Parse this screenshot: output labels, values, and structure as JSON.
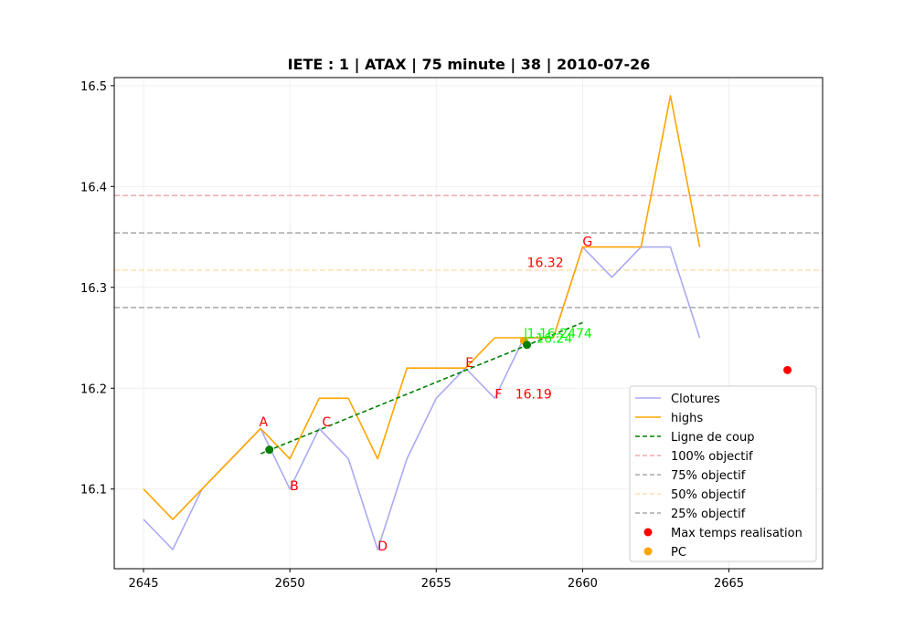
{
  "chart_data": {
    "type": "line",
    "title": "IETE : 1 | ATAX | 75 minute | 38 | 2010-07-26",
    "xlabel": "",
    "ylabel": "",
    "xlim": [
      2644.0,
      2668.2
    ],
    "ylim": [
      16.021,
      16.508
    ],
    "xticks": [
      2645,
      2650,
      2655,
      2660,
      2665
    ],
    "yticks": [
      16.1,
      16.2,
      16.3,
      16.4,
      16.5
    ],
    "ytick_labels": [
      "16.1",
      "16.2",
      "16.3",
      "16.4",
      "16.5"
    ],
    "grid": true,
    "legend_position": "lower-right",
    "series": [
      {
        "name": "Clotures",
        "kind": "line",
        "color": "#aaaaf4",
        "x": [
          2645,
          2646,
          2647,
          2648,
          2649,
          2650,
          2651,
          2652,
          2653,
          2654,
          2655,
          2656,
          2657,
          2658,
          2659,
          2660,
          2661,
          2662,
          2663,
          2664
        ],
        "y": [
          16.07,
          16.04,
          16.1,
          16.13,
          16.16,
          16.1,
          16.16,
          16.13,
          16.04,
          16.13,
          16.19,
          16.22,
          16.19,
          16.25,
          16.25,
          16.34,
          16.31,
          16.34,
          16.34,
          16.25
        ]
      },
      {
        "name": "highs",
        "kind": "line",
        "color": "#ffa500",
        "x": [
          2645,
          2646,
          2647,
          2648,
          2649,
          2650,
          2651,
          2652,
          2653,
          2654,
          2655,
          2656,
          2657,
          2658,
          2659,
          2660,
          2661,
          2662,
          2663,
          2664
        ],
        "y": [
          16.1,
          16.07,
          16.1,
          16.13,
          16.16,
          16.13,
          16.19,
          16.19,
          16.13,
          16.22,
          16.22,
          16.22,
          16.25,
          16.25,
          16.25,
          16.34,
          16.34,
          16.34,
          16.49,
          16.34
        ]
      },
      {
        "name": "Ligne de coup",
        "kind": "dashed",
        "color": "#008000",
        "x": [
          2649,
          2660
        ],
        "y": [
          16.135,
          16.265
        ]
      },
      {
        "name": "100% objectif",
        "kind": "hline",
        "color": "#f4a9a9",
        "y": 16.391
      },
      {
        "name": "75% objectif",
        "kind": "hline",
        "color": "#a8a8a8",
        "y": 16.354
      },
      {
        "name": "50% objectif",
        "kind": "hline",
        "color": "#fde0b0",
        "y": 16.317
      },
      {
        "name": "25% objectif",
        "kind": "hline",
        "color": "#a8a8a8",
        "y": 16.28
      },
      {
        "name": "Max temps realisation",
        "kind": "marker",
        "color": "#ff0000",
        "x": [
          2667
        ],
        "y": [
          16.218
        ]
      },
      {
        "name": "PC",
        "kind": "marker",
        "color": "#ffa500",
        "x": [
          2658
        ],
        "y": [
          16.247
        ]
      }
    ],
    "green_points": [
      {
        "x": 2649.3,
        "y": 16.139
      },
      {
        "x": 2658.1,
        "y": 16.243
      }
    ],
    "annotations": [
      {
        "text": "A",
        "x": 2648.95,
        "y": 16.162,
        "color": "#ff0000"
      },
      {
        "text": "B",
        "x": 2650.0,
        "y": 16.099,
        "color": "#ff0000"
      },
      {
        "text": "C",
        "x": 2651.1,
        "y": 16.162,
        "color": "#ff0000"
      },
      {
        "text": "D",
        "x": 2653.0,
        "y": 16.039,
        "color": "#ff0000"
      },
      {
        "text": "E",
        "x": 2656.0,
        "y": 16.221,
        "color": "#ff0000"
      },
      {
        "text": "F",
        "x": 2657.0,
        "y": 16.19,
        "color": "#ff0000"
      },
      {
        "text": "16.19",
        "x": 2657.7,
        "y": 16.19,
        "color": "#ff0000"
      },
      {
        "text": "16.32",
        "x": 2658.1,
        "y": 16.32,
        "color": "#ff0000"
      },
      {
        "text": "G",
        "x": 2660.0,
        "y": 16.341,
        "color": "#ff0000"
      },
      {
        "text": "1.16.2474",
        "x": 2658.1,
        "y": 16.25,
        "color": "#00ff00"
      },
      {
        "text": "16.24",
        "x": 2658.4,
        "y": 16.245,
        "color": "#00ff00"
      },
      {
        "text": "|",
        "x": 2657.98,
        "y": 16.25,
        "color": "#00ff00"
      }
    ]
  }
}
